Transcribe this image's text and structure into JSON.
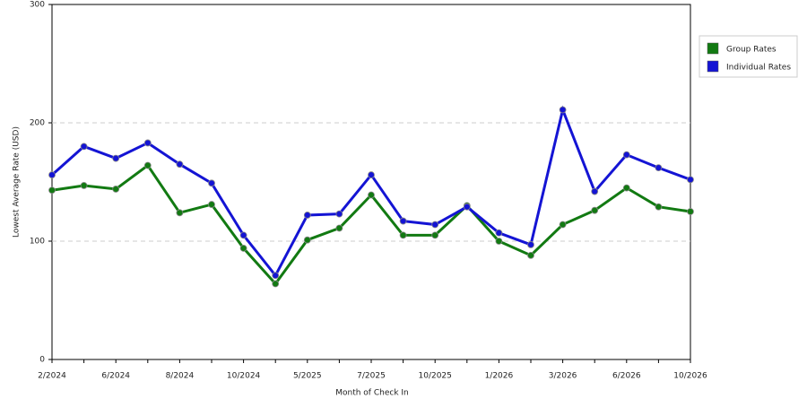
{
  "chart_data": {
    "type": "line",
    "x_label": "Month of Check In",
    "y_label": "Lowest Average Rate (USD)",
    "categories": [
      "2/2024",
      null,
      "6/2024",
      null,
      "8/2024",
      null,
      "10/2024",
      null,
      "5/2025",
      null,
      "7/2025",
      null,
      "10/2025",
      null,
      "1/2026",
      null,
      "3/2026",
      null,
      "6/2026",
      null,
      "10/2026"
    ],
    "series": [
      {
        "name": "Group Rates",
        "color": "#127a12",
        "values": [
          143,
          147,
          144,
          164,
          124,
          131,
          94,
          64,
          101,
          111,
          139,
          105,
          105,
          130,
          100,
          88,
          114,
          126,
          145,
          129,
          125
        ]
      },
      {
        "name": "Individual Rates",
        "color": "#1414d4",
        "values": [
          156,
          180,
          170,
          183,
          165,
          149,
          105,
          71,
          122,
          123,
          156,
          117,
          114,
          129,
          107,
          97,
          211,
          142,
          173,
          162,
          152
        ]
      }
    ],
    "ylim": [
      0,
      300
    ],
    "yticks": [
      0,
      100,
      200,
      300
    ],
    "grid": true,
    "legend": "right"
  }
}
